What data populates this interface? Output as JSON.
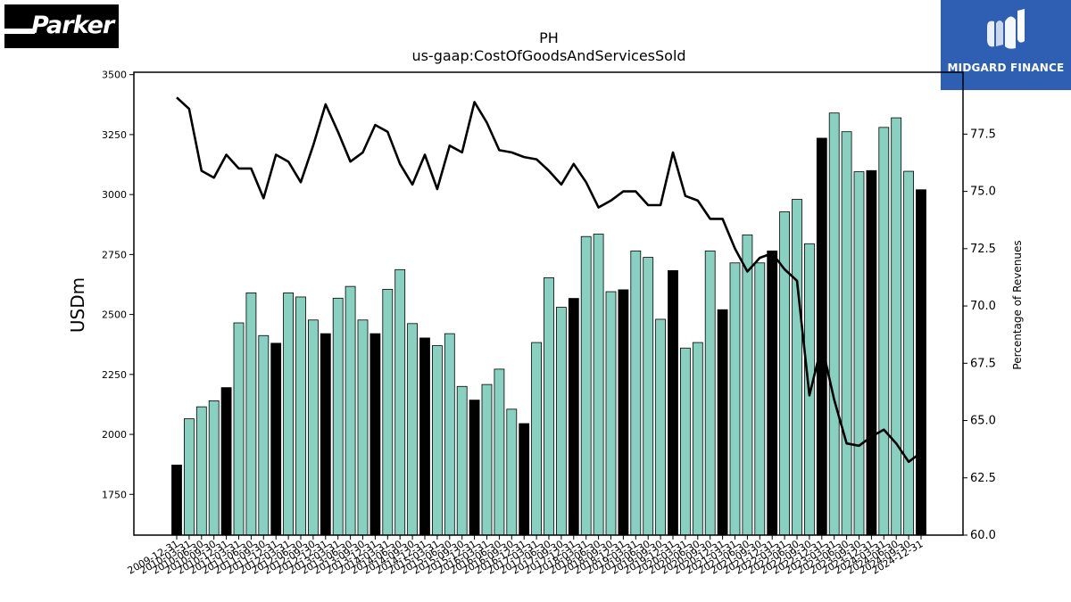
{
  "logos": {
    "left_text": "Parker",
    "right_text": "MIDGARD FINANCE"
  },
  "chart_data": {
    "type": "bar",
    "title": "PH",
    "subtitle": "us-gaap:CostOfGoodsAndServicesSold",
    "ylabel": "USDm",
    "y2label": "Percentage of Revenues",
    "ylim": [
      1580,
      3510
    ],
    "y2lim": [
      60.0,
      80.2
    ],
    "yticks": [
      1750,
      2000,
      2250,
      2500,
      2750,
      3000,
      3250,
      3500
    ],
    "y2ticks": [
      "60.0",
      "62.5",
      "65.0",
      "67.5",
      "70.0",
      "72.5",
      "75.0",
      "77.5"
    ],
    "colors": {
      "annual": "#000000",
      "quarter": "#88d1c1",
      "line": "#000000"
    },
    "categories": [
      "2009-12-31",
      "2010-03-31",
      "2010-06-30",
      "2010-09-30",
      "2010-12-31",
      "2011-03-31",
      "2011-06-30",
      "2011-09-30",
      "2011-12-31",
      "2012-03-31",
      "2012-06-30",
      "2012-09-30",
      "2012-12-31",
      "2013-03-31",
      "2013-06-30",
      "2013-09-30",
      "2013-12-31",
      "2014-03-31",
      "2014-06-30",
      "2014-09-30",
      "2014-12-31",
      "2015-03-31",
      "2015-06-30",
      "2015-09-30",
      "2015-12-31",
      "2016-03-31",
      "2016-06-30",
      "2016-09-30",
      "2016-12-31",
      "2017-03-31",
      "2017-06-30",
      "2017-09-30",
      "2017-12-31",
      "2018-03-31",
      "2018-06-30",
      "2018-09-30",
      "2018-12-31",
      "2019-03-31",
      "2019-06-30",
      "2019-09-30",
      "2019-12-31",
      "2020-03-31",
      "2020-06-30",
      "2020-09-30",
      "2020-12-31",
      "2021-03-31",
      "2021-06-30",
      "2021-09-30",
      "2021-12-31",
      "2022-03-31",
      "2022-06-30",
      "2022-09-30",
      "2022-12-31",
      "2023-03-31",
      "2023-06-30",
      "2023-09-30",
      "2023-12-31",
      "2024-03-31",
      "2024-06-30",
      "2024-09-30",
      "2024-12-31"
    ],
    "xtick_labels": [
      "2009-12-31",
      "2010-03-31",
      "2010-06-30",
      "2010-09-30",
      "2010-12-31",
      "2011-03-31",
      "2011-06-30",
      "2011-09-30",
      "2011-12-31",
      "2012-03-31",
      "2012-06-30",
      "2012-09-30",
      "2012-12-31",
      "2013-03-31",
      "2013-06-30",
      "2013-09-30",
      "2013-12-31",
      "2014-03-31",
      "2014-06-30",
      "2014-09-30",
      "2014-12-31",
      "2015-03-31",
      "2015-06-30",
      "2015-09-30",
      "2015-12-31",
      "2016-03-31",
      "2016-06-30",
      "2016-09-30",
      "2016-12-31",
      "2017-03-31",
      "2017-06-30",
      "2017-09-30",
      "2017-12-31",
      "2018-03-31",
      "2018-06-30",
      "2018-09-30",
      "2018-12-31",
      "2019-03-31",
      "2019-06-30",
      "2019-09-30",
      "2019-12-31",
      "2020-03-31",
      "2020-06-30",
      "2020-09-30",
      "2020-12-31",
      "2021-03-31",
      "2021-06-30",
      "2021-09-30",
      "2021-12-31",
      "2022-03-31",
      "2022-06-30",
      "2022-09-30",
      "2022-12-31",
      "2023-03-31",
      "2023-06-30",
      "2023-09-30",
      "2023-12-31",
      "2024-03-31",
      "2024-06-30",
      "2024-09-30",
      "2024-12-31"
    ],
    "values": [
      1872,
      2065,
      2115,
      2140,
      2195,
      2465,
      2590,
      2412,
      2380,
      2590,
      2573,
      2477,
      2420,
      2568,
      2617,
      2477,
      2420,
      2605,
      2687,
      2462,
      2402,
      2370,
      2420,
      2200,
      2143,
      2208,
      2272,
      2105,
      2045,
      2383,
      2653,
      2530,
      2567,
      2825,
      2835,
      2595,
      2603,
      2765,
      2738,
      2480,
      2683,
      2360,
      2383,
      2765,
      2520,
      2715,
      2832,
      2715,
      2765,
      2928,
      2980,
      2795,
      3235,
      3340,
      3262,
      3095,
      3100,
      3280,
      3320,
      3097,
      3020
    ],
    "annual_flags": [
      1,
      0,
      0,
      0,
      1,
      0,
      0,
      0,
      1,
      0,
      0,
      0,
      1,
      0,
      0,
      0,
      1,
      0,
      0,
      0,
      1,
      0,
      0,
      0,
      1,
      0,
      0,
      0,
      1,
      0,
      0,
      0,
      1,
      0,
      0,
      0,
      1,
      0,
      0,
      0,
      1,
      0,
      0,
      0,
      1,
      0,
      0,
      0,
      1,
      0,
      0,
      0,
      1,
      0,
      0,
      0,
      1,
      0,
      0,
      0,
      1
    ],
    "pct_values": [
      79.1,
      78.6,
      75.9,
      75.6,
      76.6,
      76.0,
      76.0,
      74.7,
      76.6,
      76.3,
      75.4,
      77.0,
      78.8,
      77.6,
      76.3,
      76.7,
      77.9,
      77.6,
      76.2,
      75.3,
      76.6,
      75.1,
      77.0,
      76.7,
      78.9,
      78.0,
      76.8,
      76.7,
      76.5,
      76.4,
      75.9,
      75.3,
      76.2,
      75.4,
      74.3,
      74.6,
      75.0,
      75.0,
      74.4,
      74.4,
      76.7,
      74.8,
      74.6,
      73.8,
      73.8,
      72.5,
      71.5,
      72.1,
      72.3,
      71.6,
      71.1,
      66.1,
      68.3,
      65.9,
      64.0,
      63.9,
      64.3,
      64.6,
      64.0,
      63.2,
      63.6
    ]
  }
}
